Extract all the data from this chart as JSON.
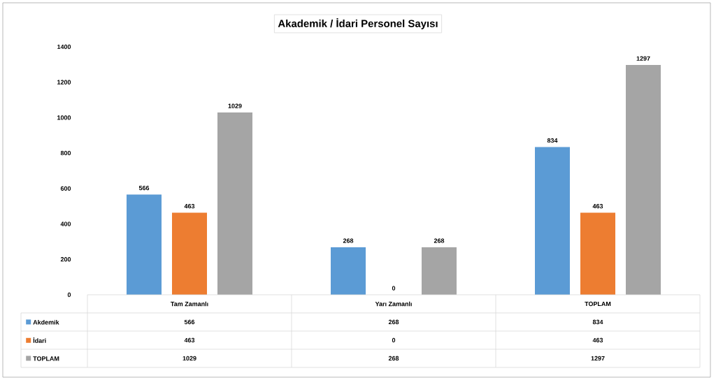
{
  "chart_data": {
    "type": "bar",
    "title": "Akademik / İdari Personel Sayısı",
    "categories": [
      "Tam Zamanlı",
      "Yarı Zamanlı",
      "TOPLAM"
    ],
    "series": [
      {
        "name": "Akdemik",
        "color": "#5b9bd5",
        "values": [
          566,
          268,
          834
        ]
      },
      {
        "name": "İdari",
        "color": "#ed7d31",
        "values": [
          463,
          0,
          463
        ]
      },
      {
        "name": "TOPLAM",
        "color": "#a5a5a5",
        "values": [
          1029,
          268,
          1297
        ]
      }
    ],
    "annotations": [
      "566",
      "268",
      "834",
      "463",
      "0",
      "463",
      "1029",
      "268",
      "1297"
    ],
    "ylim": [
      0,
      1400
    ],
    "yticks": [
      0,
      200,
      400,
      600,
      800,
      1000,
      1200,
      1400
    ],
    "data_labels": true,
    "legend": "bottom left"
  }
}
